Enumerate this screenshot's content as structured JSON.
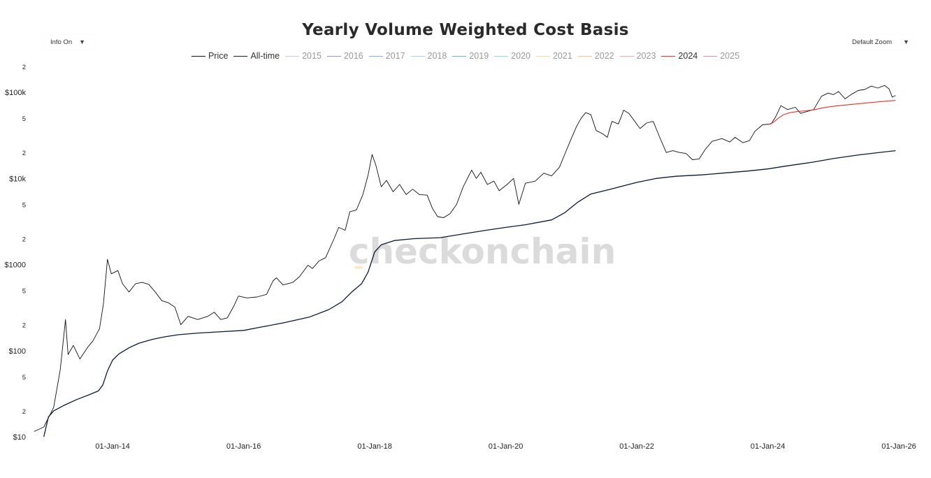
{
  "chart_data": {
    "type": "line",
    "title": "Yearly Volume Weighted Cost Basis",
    "yscale": "log",
    "ylim": [
      10,
      200000
    ],
    "xlim": [
      "2012-10-01",
      "2026-01-01"
    ],
    "y_major_ticks": [
      {
        "value": 10,
        "label": "$10"
      },
      {
        "value": 100,
        "label": "$100"
      },
      {
        "value": 1000,
        "label": "$1000"
      },
      {
        "value": 10000,
        "label": "$10k"
      },
      {
        "value": 100000,
        "label": "$100k"
      }
    ],
    "y_minor_ticks": [
      {
        "value": 20,
        "label": "2"
      },
      {
        "value": 50,
        "label": "5"
      },
      {
        "value": 200,
        "label": "2"
      },
      {
        "value": 500,
        "label": "5"
      },
      {
        "value": 2000,
        "label": "2"
      },
      {
        "value": 5000,
        "label": "5"
      },
      {
        "value": 20000,
        "label": "2"
      },
      {
        "value": 50000,
        "label": "5"
      },
      {
        "value": 200000,
        "label": "2"
      }
    ],
    "x_ticks": [
      {
        "value": "2014-01-01",
        "label": "01-Jan-14"
      },
      {
        "value": "2016-01-01",
        "label": "01-Jan-16"
      },
      {
        "value": "2018-01-01",
        "label": "01-Jan-18"
      },
      {
        "value": "2020-01-01",
        "label": "01-Jan-20"
      },
      {
        "value": "2022-01-01",
        "label": "01-Jan-22"
      },
      {
        "value": "2024-01-01",
        "label": "01-Jan-24"
      },
      {
        "value": "2026-01-01",
        "label": "01-Jan-26"
      }
    ],
    "watermark": "checkonchain",
    "series": [
      {
        "name": "Price",
        "color": "#111111",
        "visible": true,
        "width": 0.9,
        "points": [
          [
            2012.8,
            11.5
          ],
          [
            2012.95,
            13
          ],
          [
            2013.1,
            22
          ],
          [
            2013.2,
            60
          ],
          [
            2013.28,
            230
          ],
          [
            2013.32,
            90
          ],
          [
            2013.4,
            115
          ],
          [
            2013.5,
            80
          ],
          [
            2013.62,
            110
          ],
          [
            2013.7,
            130
          ],
          [
            2013.8,
            180
          ],
          [
            2013.86,
            350
          ],
          [
            2013.92,
            1150
          ],
          [
            2013.98,
            780
          ],
          [
            2014.08,
            850
          ],
          [
            2014.15,
            600
          ],
          [
            2014.25,
            480
          ],
          [
            2014.35,
            600
          ],
          [
            2014.45,
            620
          ],
          [
            2014.55,
            590
          ],
          [
            2014.65,
            480
          ],
          [
            2014.75,
            380
          ],
          [
            2014.85,
            360
          ],
          [
            2014.95,
            320
          ],
          [
            2015.04,
            200
          ],
          [
            2015.15,
            250
          ],
          [
            2015.3,
            230
          ],
          [
            2015.45,
            250
          ],
          [
            2015.55,
            280
          ],
          [
            2015.65,
            230
          ],
          [
            2015.75,
            240
          ],
          [
            2015.85,
            330
          ],
          [
            2015.92,
            430
          ],
          [
            2016.05,
            410
          ],
          [
            2016.2,
            420
          ],
          [
            2016.35,
            450
          ],
          [
            2016.45,
            650
          ],
          [
            2016.5,
            700
          ],
          [
            2016.6,
            580
          ],
          [
            2016.75,
            620
          ],
          [
            2016.85,
            720
          ],
          [
            2016.98,
            980
          ],
          [
            2017.05,
            900
          ],
          [
            2017.15,
            1100
          ],
          [
            2017.25,
            1200
          ],
          [
            2017.38,
            2000
          ],
          [
            2017.45,
            2700
          ],
          [
            2017.55,
            2500
          ],
          [
            2017.62,
            4100
          ],
          [
            2017.72,
            4300
          ],
          [
            2017.82,
            6500
          ],
          [
            2017.9,
            11000
          ],
          [
            2017.96,
            19000
          ],
          [
            2018.02,
            14000
          ],
          [
            2018.1,
            8000
          ],
          [
            2018.18,
            9500
          ],
          [
            2018.28,
            7000
          ],
          [
            2018.38,
            8500
          ],
          [
            2018.48,
            6500
          ],
          [
            2018.58,
            7500
          ],
          [
            2018.68,
            6500
          ],
          [
            2018.8,
            6400
          ],
          [
            2018.88,
            4500
          ],
          [
            2018.96,
            3600
          ],
          [
            2019.05,
            3500
          ],
          [
            2019.15,
            3900
          ],
          [
            2019.25,
            5000
          ],
          [
            2019.35,
            8000
          ],
          [
            2019.48,
            12500
          ],
          [
            2019.55,
            10000
          ],
          [
            2019.62,
            11800
          ],
          [
            2019.72,
            8500
          ],
          [
            2019.82,
            9300
          ],
          [
            2019.9,
            7200
          ],
          [
            2020.02,
            8500
          ],
          [
            2020.12,
            10000
          ],
          [
            2020.2,
            5000
          ],
          [
            2020.3,
            8800
          ],
          [
            2020.45,
            9300
          ],
          [
            2020.58,
            11500
          ],
          [
            2020.7,
            10700
          ],
          [
            2020.82,
            13500
          ],
          [
            2020.9,
            19000
          ],
          [
            2021.0,
            29000
          ],
          [
            2021.08,
            40000
          ],
          [
            2021.15,
            50000
          ],
          [
            2021.22,
            58000
          ],
          [
            2021.3,
            55000
          ],
          [
            2021.38,
            36000
          ],
          [
            2021.48,
            33000
          ],
          [
            2021.55,
            30000
          ],
          [
            2021.62,
            46000
          ],
          [
            2021.72,
            43000
          ],
          [
            2021.8,
            62000
          ],
          [
            2021.88,
            57000
          ],
          [
            2021.96,
            47000
          ],
          [
            2022.05,
            38000
          ],
          [
            2022.15,
            44000
          ],
          [
            2022.25,
            46000
          ],
          [
            2022.35,
            30000
          ],
          [
            2022.45,
            20000
          ],
          [
            2022.55,
            21000
          ],
          [
            2022.65,
            20000
          ],
          [
            2022.75,
            19500
          ],
          [
            2022.85,
            16500
          ],
          [
            2022.95,
            16800
          ],
          [
            2023.05,
            22000
          ],
          [
            2023.15,
            27000
          ],
          [
            2023.3,
            29000
          ],
          [
            2023.42,
            26500
          ],
          [
            2023.5,
            30000
          ],
          [
            2023.62,
            26000
          ],
          [
            2023.72,
            27500
          ],
          [
            2023.8,
            35000
          ],
          [
            2023.92,
            42000
          ],
          [
            2024.05,
            43000
          ],
          [
            2024.12,
            52000
          ],
          [
            2024.2,
            70000
          ],
          [
            2024.3,
            63000
          ],
          [
            2024.42,
            67000
          ],
          [
            2024.5,
            57000
          ],
          [
            2024.6,
            60000
          ],
          [
            2024.7,
            63000
          ],
          [
            2024.82,
            90000
          ],
          [
            2024.92,
            98000
          ],
          [
            2025.0,
            94000
          ],
          [
            2025.08,
            102000
          ],
          [
            2025.18,
            84000
          ],
          [
            2025.28,
            95000
          ],
          [
            2025.38,
            105000
          ],
          [
            2025.48,
            108000
          ],
          [
            2025.58,
            118000
          ],
          [
            2025.68,
            112000
          ],
          [
            2025.78,
            120000
          ],
          [
            2025.85,
            110000
          ],
          [
            2025.9,
            88000
          ],
          [
            2025.95,
            92000
          ]
        ]
      },
      {
        "name": "All-time",
        "color": "#0d1a33",
        "visible": true,
        "width": 1.3,
        "points": [
          [
            2012.95,
            10
          ],
          [
            2013.02,
            17
          ],
          [
            2013.1,
            20
          ],
          [
            2013.25,
            23
          ],
          [
            2013.45,
            27
          ],
          [
            2013.65,
            31
          ],
          [
            2013.78,
            34
          ],
          [
            2013.85,
            40
          ],
          [
            2013.92,
            58
          ],
          [
            2014.0,
            78
          ],
          [
            2014.1,
            92
          ],
          [
            2014.25,
            108
          ],
          [
            2014.4,
            122
          ],
          [
            2014.6,
            135
          ],
          [
            2014.8,
            145
          ],
          [
            2015.0,
            153
          ],
          [
            2015.3,
            160
          ],
          [
            2015.6,
            165
          ],
          [
            2016.0,
            172
          ],
          [
            2016.3,
            190
          ],
          [
            2016.6,
            210
          ],
          [
            2017.0,
            245
          ],
          [
            2017.3,
            300
          ],
          [
            2017.5,
            370
          ],
          [
            2017.65,
            480
          ],
          [
            2017.8,
            600
          ],
          [
            2017.9,
            820
          ],
          [
            2018.0,
            1400
          ],
          [
            2018.1,
            1700
          ],
          [
            2018.3,
            1900
          ],
          [
            2018.6,
            2000
          ],
          [
            2019.0,
            2050
          ],
          [
            2019.4,
            2300
          ],
          [
            2019.7,
            2500
          ],
          [
            2020.0,
            2700
          ],
          [
            2020.3,
            2900
          ],
          [
            2020.7,
            3300
          ],
          [
            2020.9,
            4000
          ],
          [
            2021.1,
            5300
          ],
          [
            2021.3,
            6600
          ],
          [
            2021.6,
            7500
          ],
          [
            2022.0,
            9000
          ],
          [
            2022.3,
            10000
          ],
          [
            2022.6,
            10600
          ],
          [
            2023.0,
            11000
          ],
          [
            2023.3,
            11500
          ],
          [
            2023.7,
            12200
          ],
          [
            2024.0,
            12900
          ],
          [
            2024.3,
            14000
          ],
          [
            2024.7,
            15500
          ],
          [
            2025.0,
            17000
          ],
          [
            2025.4,
            18800
          ],
          [
            2025.95,
            21000
          ]
        ]
      },
      {
        "name": "2015",
        "color": "#c8c4ee",
        "visible": false,
        "points": []
      },
      {
        "name": "2016",
        "color": "#9b8ee0",
        "visible": false,
        "points": []
      },
      {
        "name": "2017",
        "color": "#7eaee8",
        "visible": false,
        "points": []
      },
      {
        "name": "2018",
        "color": "#b8ccf2",
        "visible": false,
        "points": []
      },
      {
        "name": "2019",
        "color": "#6fb79d",
        "visible": false,
        "points": []
      },
      {
        "name": "2020",
        "color": "#8ee0cc",
        "visible": false,
        "points": []
      },
      {
        "name": "2021",
        "color": "#f9d9a0",
        "visible": false,
        "points": [
          [
            2017.7,
            925
          ],
          [
            2017.82,
            925
          ]
        ]
      },
      {
        "name": "2022",
        "color": "#f7c38d",
        "visible": false,
        "points": []
      },
      {
        "name": "2023",
        "color": "#f2a6b0",
        "visible": false,
        "points": []
      },
      {
        "name": "2024",
        "color": "#e8322e",
        "visible": true,
        "width": 1.1,
        "points": [
          [
            2024.0,
            42000
          ],
          [
            2024.08,
            44500
          ],
          [
            2024.16,
            50000
          ],
          [
            2024.24,
            55000
          ],
          [
            2024.34,
            58000
          ],
          [
            2024.46,
            60000
          ],
          [
            2024.58,
            61000
          ],
          [
            2024.7,
            62500
          ],
          [
            2024.82,
            65500
          ],
          [
            2024.92,
            67500
          ],
          [
            2025.05,
            69500
          ],
          [
            2025.25,
            72000
          ],
          [
            2025.45,
            74500
          ],
          [
            2025.65,
            77000
          ],
          [
            2025.85,
            79500
          ],
          [
            2025.95,
            80500
          ]
        ]
      },
      {
        "name": "2025",
        "color": "#ee88a8",
        "visible": false,
        "points": []
      }
    ]
  },
  "controls": {
    "info_label": "Info On",
    "zoom_label": "Default Zoom",
    "caret": "▼"
  }
}
